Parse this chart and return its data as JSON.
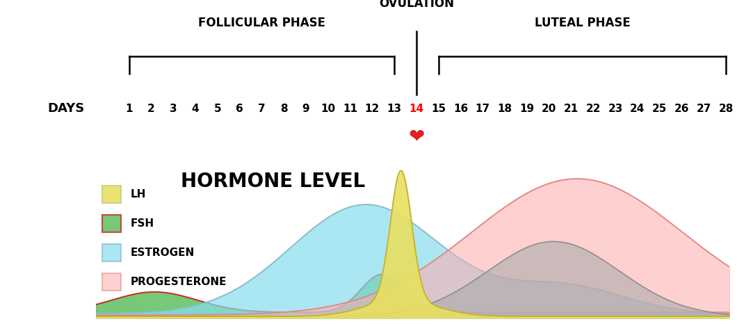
{
  "background_color": "#ffffff",
  "title": "HORMONE LEVEL",
  "title_fontsize": 20,
  "phase_labels": {
    "follicular": "FOLLICULAR PHASE",
    "ovulation": "OVULATION",
    "luteal": "LUTEAL PHASE"
  },
  "days_label": "DAYS",
  "legend_items": [
    {
      "label": "LH",
      "fill": "#f5f5a0",
      "edge": "#cccc88"
    },
    {
      "label": "FSH",
      "fill": "#55bb55",
      "edge": "#cc2222"
    },
    {
      "label": "ESTROGEN",
      "fill": "#aaeeff",
      "edge": "#88ccdd"
    },
    {
      "label": "PROGESTERONE",
      "fill": "#ffbbbb",
      "edge": "#ffbbbb"
    }
  ],
  "colors": {
    "LH_fill": "#e8e060",
    "LH_edge": "#c8b030",
    "FSH_fill": "#55bb55",
    "FSH_edge": "#cc2222",
    "EST_fill": "#88ddee",
    "EST_edge": "#88bbcc",
    "PROG_fill": "#ffaaaa",
    "PROG_edge": "#dd8888",
    "gray_fill": "#aaaaaa",
    "gray_edge": "#888888"
  },
  "alphas": {
    "LH": 0.9,
    "FSH": 0.8,
    "EST": 0.7,
    "PROG": 0.55,
    "gray": 0.6
  }
}
